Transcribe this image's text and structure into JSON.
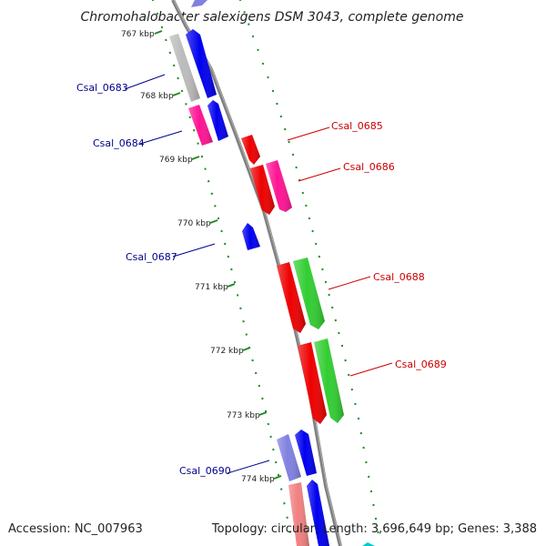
{
  "title": "Chromohalobacter salexigens DSM 3043, complete genome",
  "accession_text": "Accession: NC_007963",
  "summary_text": "Topology: circular; Length: 3,696,649 bp; Genes: 3,388",
  "colors": {
    "backbone": "#808080",
    "tick": "#228b22",
    "strand_minus_label": "#00008b",
    "strand_plus_label": "#cc0000",
    "gene_blue": "#0000ee",
    "gene_red": "#ee0000",
    "gene_pink": "#ff1493",
    "gene_green": "#32cd32",
    "gene_grey": "#bbbbbb",
    "gene_lavender": "#8080e0",
    "gene_salmon": "#f08080"
  },
  "scale_labels": [
    {
      "kbp": 767,
      "text": "767 kbp"
    },
    {
      "kbp": 768,
      "text": "768 kbp"
    },
    {
      "kbp": 769,
      "text": "769 kbp"
    },
    {
      "kbp": 770,
      "text": "770 kbp"
    },
    {
      "kbp": 771,
      "text": "771 kbp"
    },
    {
      "kbp": 772,
      "text": "772 kbp"
    },
    {
      "kbp": 773,
      "text": "773 kbp"
    },
    {
      "kbp": 774,
      "text": "774 kbp"
    }
  ],
  "gene_labels": [
    {
      "name": "Csal_0683",
      "strand": "minus"
    },
    {
      "name": "Csal_0684",
      "strand": "minus"
    },
    {
      "name": "Csal_0685",
      "strand": "plus"
    },
    {
      "name": "Csal_0686",
      "strand": "plus"
    },
    {
      "name": "Csal_0687",
      "strand": "minus"
    },
    {
      "name": "Csal_0688",
      "strand": "plus"
    },
    {
      "name": "Csal_0689",
      "strand": "plus"
    },
    {
      "name": "Csal_0690",
      "strand": "minus"
    }
  ]
}
